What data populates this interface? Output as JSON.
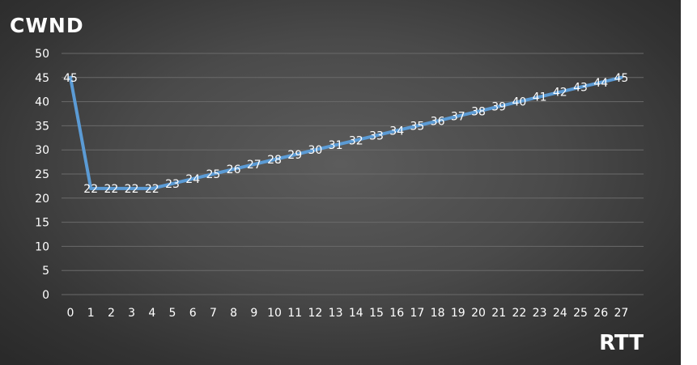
{
  "chart_data": {
    "type": "line",
    "title": "",
    "ylabel": "CWND",
    "xlabel": "RTT",
    "ylim": [
      0,
      50
    ],
    "ytick_step": 5,
    "grid": true,
    "legend": "none",
    "x": [
      0,
      1,
      2,
      3,
      4,
      5,
      6,
      7,
      8,
      9,
      10,
      11,
      12,
      13,
      14,
      15,
      16,
      17,
      18,
      19,
      20,
      21,
      22,
      23,
      24,
      25,
      26,
      27
    ],
    "series": [
      {
        "values": [
          45,
          22,
          22,
          22,
          22,
          23,
          24,
          25,
          26,
          27,
          28,
          29,
          30,
          31,
          32,
          33,
          34,
          35,
          36,
          37,
          38,
          39,
          40,
          41,
          42,
          43,
          44,
          45
        ],
        "color": "#5b9bd5"
      }
    ],
    "data_labels": true,
    "colors": {
      "background": "#474747",
      "text": "#ffffff",
      "grid": "#6a6a6a",
      "line": "#5b9bd5"
    }
  }
}
